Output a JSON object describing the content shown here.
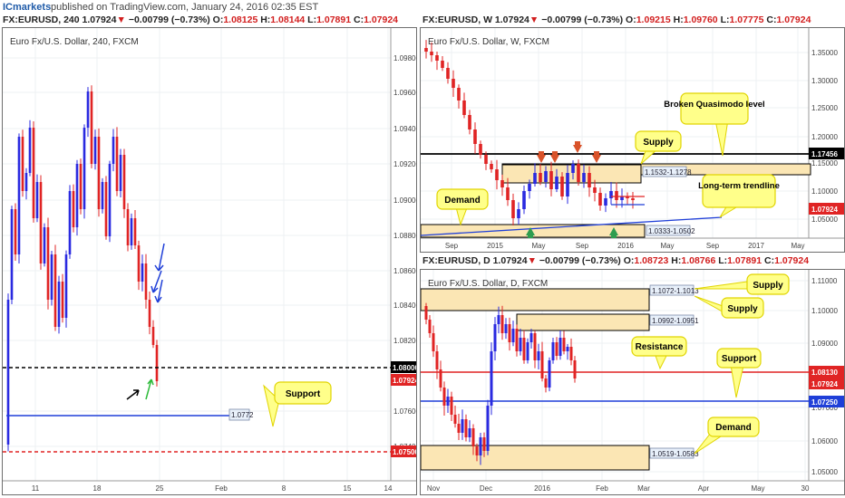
{
  "header": {
    "logo": "ICmarkets",
    "published": "published on TradingView.com, January 24, 2016 02:35 EST"
  },
  "colors": {
    "bull": "#2a2ae0",
    "bear": "#e02424",
    "zone_fill": "#fbe6b4",
    "callout_fill": "#ffff8a",
    "callout_border": "#e0d400",
    "arrow_orange": "#d9532a",
    "arrow_green": "#2e9c4f",
    "support_blue": "#1f3fd8",
    "red_level": "#e02424",
    "black_level": "#000000"
  },
  "panels": {
    "left": {
      "ohlc": {
        "sym": "FX:EURUSD, 240",
        "last": "1.07924",
        "chg": "−0.00799 (−0.73%)",
        "o": "1.08125",
        "h": "1.08144",
        "l": "1.07891",
        "c": "1.07924"
      },
      "title": "Euro Fx/U.S. Dollar, 240, FXCM",
      "price_labels": [
        "1.09800",
        "1.09600",
        "1.09400",
        "1.09200",
        "1.09000",
        "1.08800",
        "1.08600",
        "1.08400",
        "1.08200",
        "1.07600",
        "1.07400"
      ],
      "tag_black": "1.08000",
      "tag_red": "1.07924",
      "tag_red2": "1.07500",
      "time_labels": [
        "11",
        "18",
        "25",
        "Feb",
        "8",
        "15",
        "14"
      ],
      "support_level_label": "1.0772",
      "callout_support": "Support"
    },
    "weekly": {
      "ohlc": {
        "sym": "FX:EURUSD, W",
        "last": "1.07924",
        "chg": "−0.00799 (−0.73%)",
        "o": "1.09215",
        "h": "1.09760",
        "l": "1.07775",
        "c": "1.07924"
      },
      "title": "Euro Fx/U.S. Dollar, W, FXCM",
      "price_labels": [
        "1.35000",
        "1.30000",
        "1.25000",
        "1.20000",
        "1.15000",
        "1.10000",
        "1.05000"
      ],
      "tag_black": "1.17456",
      "tag_red": "1.07924",
      "time_labels": [
        "Sep",
        "2015",
        "May",
        "Sep",
        "2016",
        "May",
        "Sep",
        "2017",
        "May"
      ],
      "zone_supply_label": "1.1532-1.1278",
      "zone_demand_label": "1.0333-1.0502",
      "callout_bq": "Broken Quasimodo level",
      "callout_supply": "Supply",
      "callout_demand": "Demand",
      "callout_trend": "Long-term trendline"
    },
    "daily": {
      "ohlc": {
        "sym": "FX:EURUSD, D",
        "last": "1.07924",
        "chg": "−0.00799 (−0.73%)",
        "o": "1.08723",
        "h": "1.08766",
        "l": "1.07891",
        "c": "1.07924"
      },
      "title": "Euro Fx/U.S. Dollar, D, FXCM",
      "price_labels": [
        "1.11000",
        "1.10000",
        "1.09000",
        "1.07000",
        "1.06000",
        "1.05000"
      ],
      "tag_red": "1.08130",
      "tag_red2": "1.07924",
      "tag_blue": "1.07250",
      "time_labels": [
        "Nov",
        "Dec",
        "2016",
        "Feb",
        "Mar",
        "Apr",
        "May",
        "30"
      ],
      "zone1_label": "1.1072-1.1013",
      "zone2_label": "1.0992-1.0951",
      "zone3_label": "1.0519-1.0583",
      "callout_supply1": "Supply",
      "callout_supply2": "Supply",
      "callout_resistance": "Resistance",
      "callout_support": "Support",
      "callout_demand": "Demand"
    }
  }
}
